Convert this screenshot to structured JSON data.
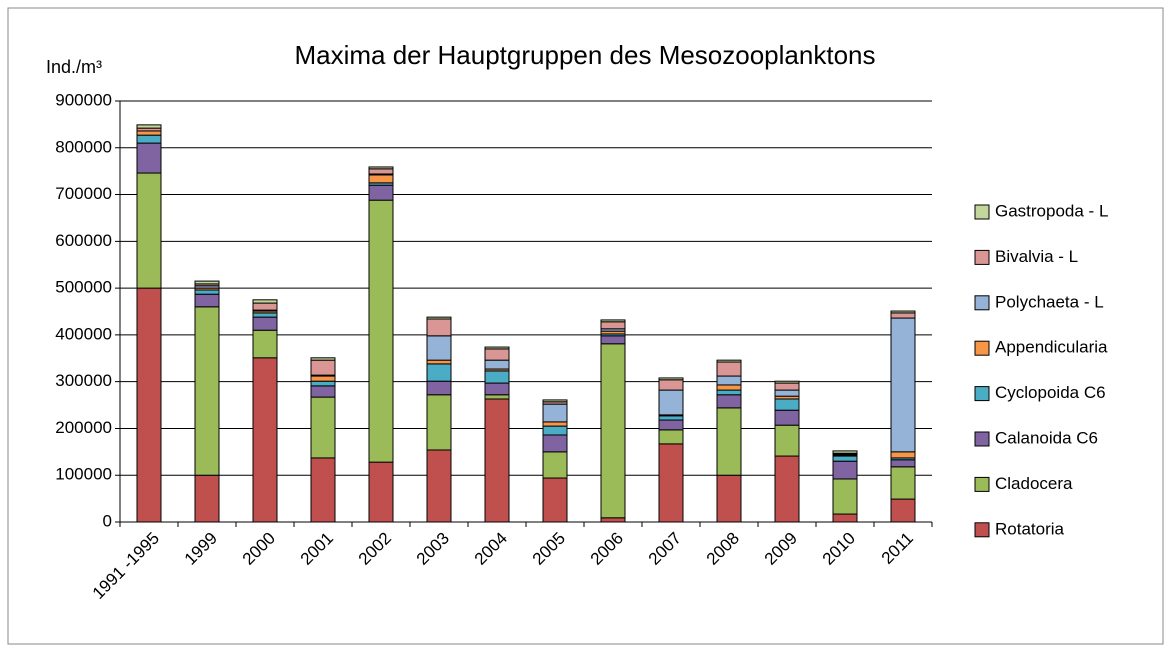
{
  "chart_data": {
    "type": "stacked_bar",
    "title": "Maxima der Hauptgruppen des Mesozooplanktons",
    "y_label": "Ind./m³",
    "categories": [
      "1991 -1995",
      "1999",
      "2000",
      "2001",
      "2002",
      "2003",
      "2004",
      "2005",
      "2006",
      "2007",
      "2008",
      "2009",
      "2010",
      "2011"
    ],
    "series": [
      {
        "name": "Rotatoria",
        "color": "#c0504d",
        "values": [
          500000,
          100000,
          351000,
          137000,
          128000,
          154000,
          263000,
          94000,
          9000,
          167000,
          100000,
          141000,
          17000,
          49000
        ]
      },
      {
        "name": "Cladocera",
        "color": "#9bbb59",
        "values": [
          246000,
          360000,
          59000,
          130000,
          560000,
          118000,
          9000,
          56000,
          372000,
          30000,
          144000,
          66000,
          75000,
          69000
        ]
      },
      {
        "name": "Calanoida C6",
        "color": "#8064a2",
        "values": [
          64000,
          27000,
          28000,
          24000,
          32000,
          29000,
          25000,
          36000,
          17000,
          21000,
          28000,
          32000,
          38000,
          15000
        ]
      },
      {
        "name": "Cyclopoida C6",
        "color": "#4bacc6",
        "values": [
          17000,
          9000,
          9000,
          10000,
          5000,
          37000,
          26000,
          19000,
          4000,
          9000,
          10000,
          24000,
          11000,
          4000
        ]
      },
      {
        "name": "Appendicularia",
        "color": "#f79646",
        "values": [
          9000,
          4000,
          4000,
          11000,
          17000,
          8000,
          4000,
          9000,
          6000,
          2000,
          11000,
          6000,
          2000,
          13000
        ]
      },
      {
        "name": "Polychaeta - L",
        "color": "#95b3d7",
        "values": [
          0,
          5000,
          2000,
          2000,
          2000,
          52000,
          19000,
          38000,
          5000,
          53000,
          19000,
          13000,
          2000,
          286000
        ]
      },
      {
        "name": "Bivalvia - L",
        "color": "#d99694",
        "values": [
          6000,
          4000,
          15000,
          32000,
          11000,
          36000,
          24000,
          5000,
          15000,
          22000,
          30000,
          15000,
          2000,
          11000
        ]
      },
      {
        "name": "Gastropoda - L",
        "color": "#c3d69b",
        "values": [
          7000,
          6000,
          7000,
          5000,
          4000,
          4000,
          4000,
          4000,
          4000,
          4000,
          4000,
          4000,
          5000,
          4000
        ]
      }
    ],
    "ylim": [
      0,
      900000
    ],
    "yticks": [
      0,
      100000,
      200000,
      300000,
      400000,
      500000,
      600000,
      700000,
      800000,
      900000
    ],
    "grid": true,
    "legend": "right"
  }
}
